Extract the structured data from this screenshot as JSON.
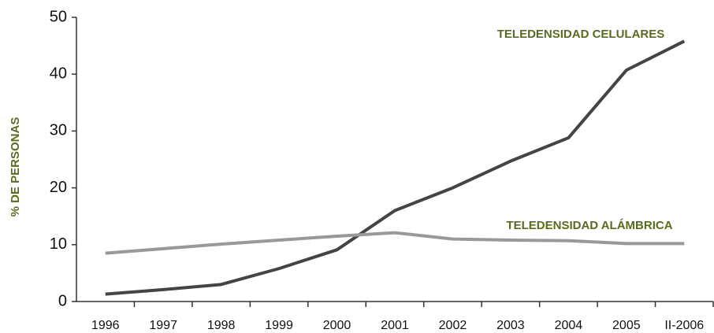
{
  "chart_data": {
    "type": "line",
    "ylabel": "% DE PERSONAS",
    "categories": [
      "1996",
      "1997",
      "1998",
      "1999",
      "2000",
      "2001",
      "2002",
      "2003",
      "2004",
      "2005",
      "II-2006"
    ],
    "series": [
      {
        "name": "TELEDENSIDAD CELULARES",
        "color": "#444444",
        "values": [
          1.3,
          2.1,
          3.0,
          5.8,
          9.1,
          16.0,
          20.0,
          24.7,
          28.8,
          40.7,
          45.8
        ]
      },
      {
        "name": "TELEDENSIDAD ALÁMBRICA",
        "color": "#999999",
        "values": [
          8.5,
          9.3,
          10.1,
          10.8,
          11.5,
          12.1,
          11.0,
          10.8,
          10.7,
          10.2,
          10.2
        ]
      }
    ],
    "ylim": [
      0,
      50
    ],
    "yticks": [
      0,
      10,
      20,
      30,
      40,
      50
    ],
    "grid": false
  }
}
